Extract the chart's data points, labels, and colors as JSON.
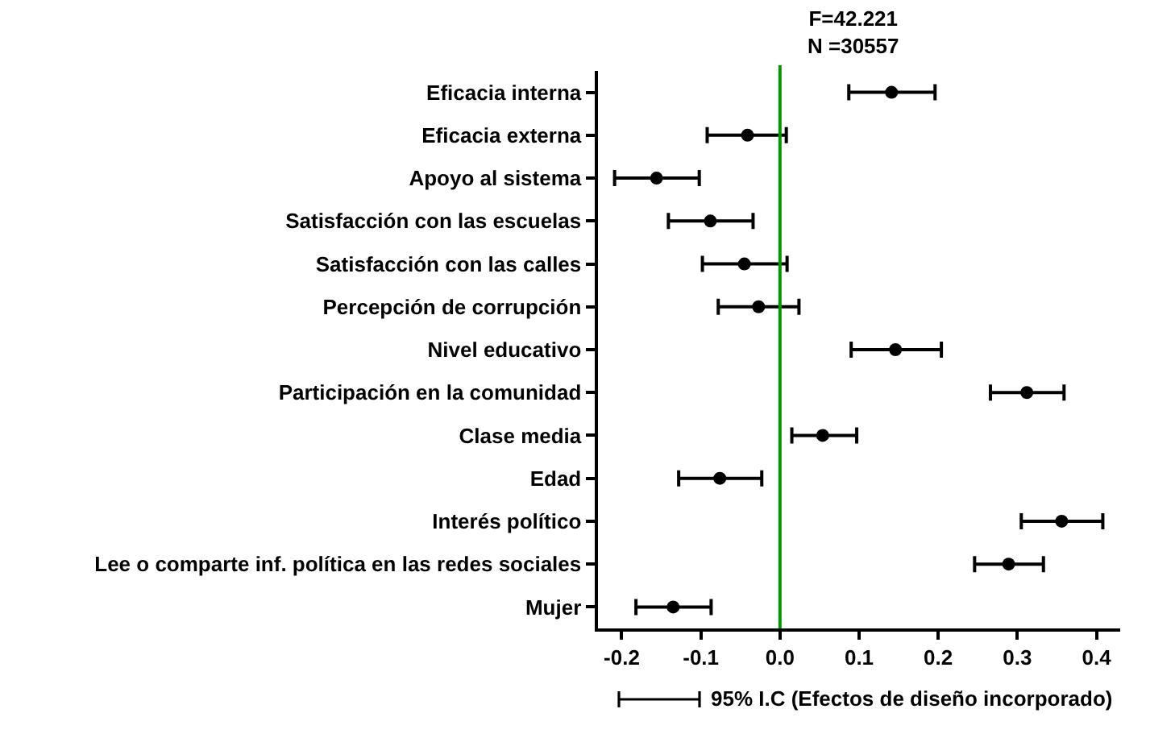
{
  "chart_data": {
    "type": "scatter",
    "orientation": "horizontal",
    "title": "F=42.221\nN =30557",
    "categories": [
      "Eficacia interna",
      "Eficacia externa",
      "Apoyo al sistema",
      "Satisfacción con las escuelas",
      "Satisfacción con las calles",
      "Percepción de corrupción",
      "Nivel educativo",
      "Participación en la comunidad",
      "Clase media",
      "Edad",
      "Interés político",
      "Lee o comparte inf. política en las redes sociales",
      "Mujer"
    ],
    "series": [
      {
        "color": "#000000",
        "values": [
          0.141,
          -0.041,
          -0.156,
          -0.088,
          -0.045,
          -0.027,
          0.146,
          0.312,
          0.054,
          -0.076,
          0.356,
          0.289,
          -0.135
        ],
        "errors": [
          [
            0.087,
            0.196
          ],
          [
            -0.092,
            0.008
          ],
          [
            -0.209,
            -0.102
          ],
          [
            -0.141,
            -0.034
          ],
          [
            -0.098,
            0.009
          ],
          [
            -0.078,
            0.024
          ],
          [
            0.09,
            0.204
          ],
          [
            0.266,
            0.359
          ],
          [
            0.015,
            0.097
          ],
          [
            -0.128,
            -0.023
          ],
          [
            0.305,
            0.408
          ],
          [
            0.246,
            0.333
          ],
          [
            -0.182,
            -0.087
          ]
        ]
      }
    ],
    "xlim": [
      -0.23,
      0.43
    ],
    "xticks": [
      {
        "value": -0.2,
        "label": "-0.2"
      },
      {
        "value": -0.1,
        "label": "-0.1"
      },
      {
        "value": 0,
        "label": "0.0"
      },
      {
        "value": 0.1,
        "label": "0.1"
      },
      {
        "value": 0.2,
        "label": "0.2"
      },
      {
        "value": 0.3,
        "label": "0.3"
      },
      {
        "value": 0.4,
        "label": "0.4"
      }
    ],
    "ref_lines": [
      {
        "axis": "x",
        "value": 0,
        "color": "#009900"
      }
    ],
    "annotations": [
      "95% I.C (Efectos de diseño incorporado)"
    ],
    "grid": false,
    "marker": "circle"
  }
}
